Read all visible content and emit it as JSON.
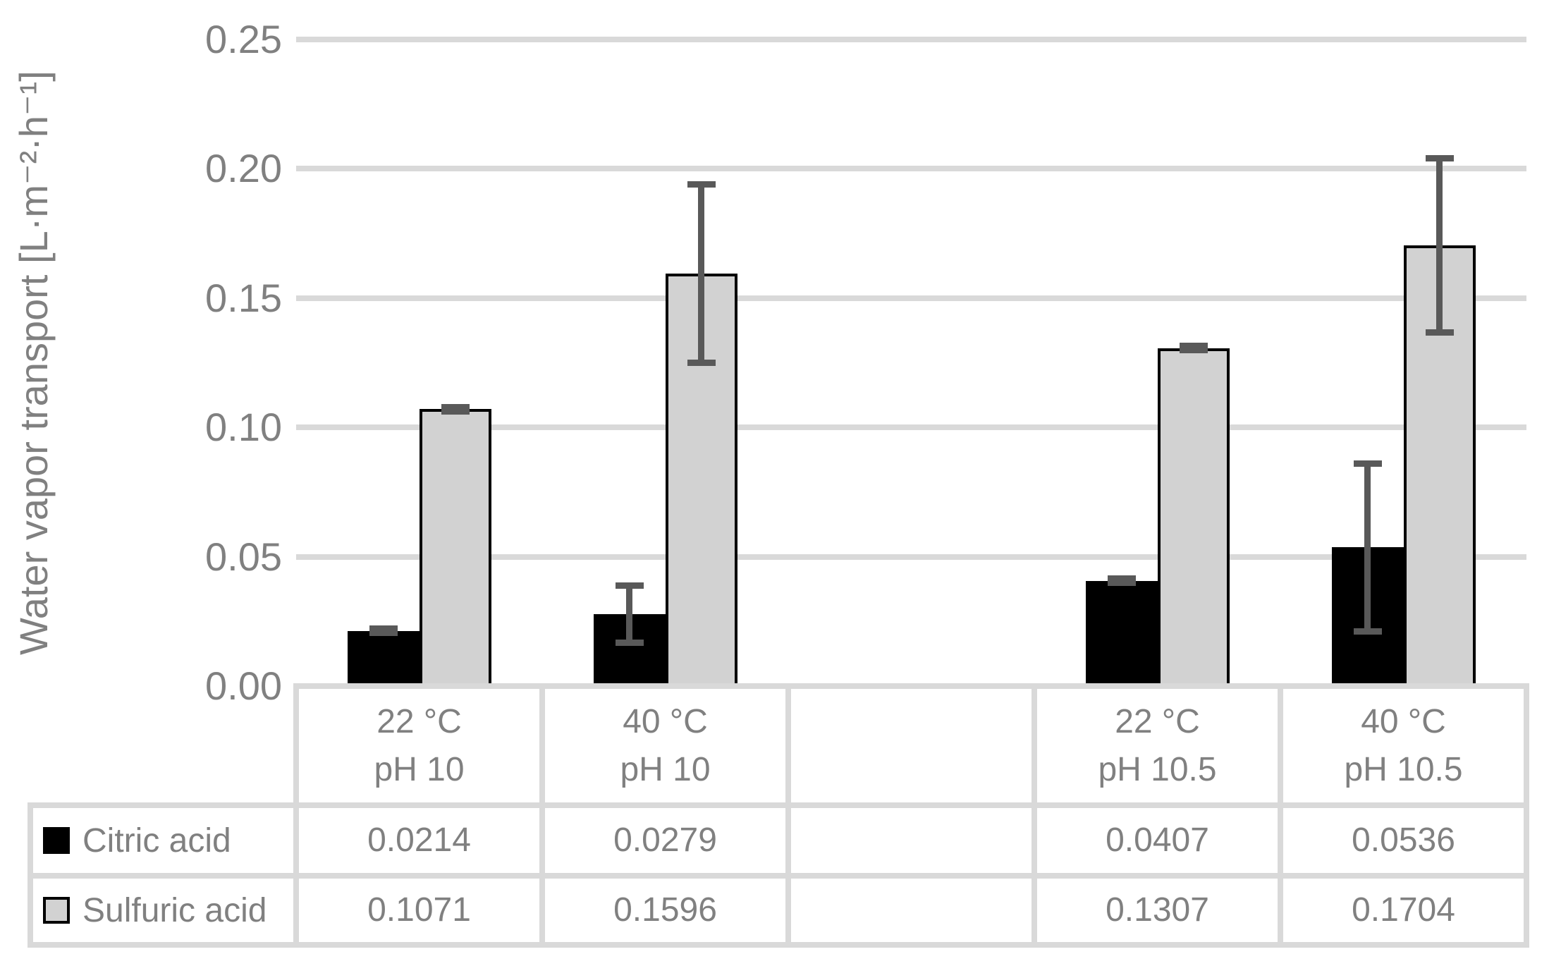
{
  "chart_data": {
    "type": "bar",
    "title": "",
    "ylabel": "Water vapor transport [L·m⁻²·h⁻¹]",
    "xlabel": "",
    "ylim": [
      0,
      0.25
    ],
    "grid": true,
    "legend_position": "table-rows-left",
    "yticks": [
      {
        "value": 0.25,
        "label": "0.25"
      },
      {
        "value": 0.2,
        "label": "0.20"
      },
      {
        "value": 0.15,
        "label": "0.15"
      },
      {
        "value": 0.1,
        "label": "0.10"
      },
      {
        "value": 0.05,
        "label": "0.05"
      },
      {
        "value": 0.0,
        "label": "0.00"
      }
    ],
    "categories": [
      "22 °C\npH 10",
      "40 °C\npH 10",
      "",
      "22 °C\npH 10.5",
      "40 °C\npH 10.5"
    ],
    "series": [
      {
        "name": "Citric acid",
        "color": "#000000",
        "outline": "",
        "values": [
          0.0214,
          0.0279,
          null,
          0.0407,
          0.0536
        ],
        "errors": [
          0.0008,
          0.011,
          null,
          0.0008,
          0.0325
        ],
        "display": [
          "0.0214",
          "0.0279",
          "",
          "0.0407",
          "0.0536"
        ]
      },
      {
        "name": "Sulfuric acid",
        "color": "#d2d2d2",
        "outline": "#000000",
        "values": [
          0.1071,
          0.1596,
          null,
          0.1307,
          0.1704
        ],
        "errors": [
          0.0008,
          0.0345,
          null,
          0.0008,
          0.0337
        ],
        "display": [
          "0.1071",
          "0.1596",
          "",
          "0.1307",
          "0.1704"
        ]
      }
    ],
    "error_bar_color": "#595959"
  },
  "styles": {
    "grid_color": "#d9d9d9",
    "table_border_color": "#d9d9d9",
    "text_color": "#808080",
    "background": "#ffffff"
  }
}
